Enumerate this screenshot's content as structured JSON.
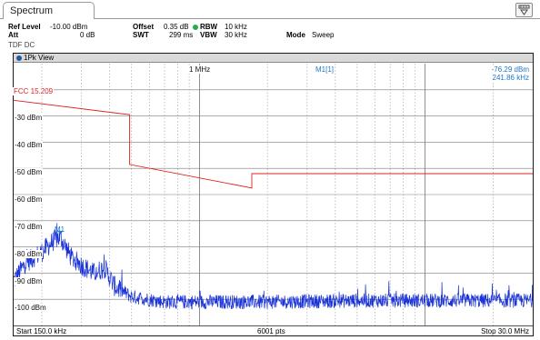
{
  "tab": {
    "label": "Spectrum"
  },
  "settings": {
    "ref_level_label": "Ref Level",
    "ref_level_value": "-10.00 dBm",
    "offset_label": "Offset",
    "offset_value": "0.35 dB",
    "rbw_label": "RBW",
    "rbw_value": "10 kHz",
    "att_label": "Att",
    "att_value": "0 dB",
    "swt_label": "SWT",
    "swt_value": "299 ms",
    "vbw_label": "VBW",
    "vbw_value": "30 kHz",
    "mode_label": "Mode",
    "mode_value": "Sweep",
    "coupling": "TDF DC"
  },
  "diagram": {
    "title": "1Pk View",
    "marker_readout": {
      "label": "M1[1]",
      "level": "-76.29 dBm",
      "frequency": "241.86 kHz"
    },
    "limit_line_label": "FCC 15.209",
    "marker_label": "M1",
    "vertical_marker_label": "1 MHz",
    "y_labels": [
      "-30 dBm",
      "-40 dBm",
      "-50 dBm",
      "-60 dBm",
      "-70 dBm",
      "-80 dBm",
      "-90 dBm",
      "-100 dBm"
    ],
    "start": "Start 150.0 kHz",
    "points": "6001 pts",
    "stop": "Stop 30.0 MHz",
    "colors": {
      "trace": "#1a33d6",
      "limit": "#e02020",
      "marker": "#1f78c8"
    }
  },
  "chart_data": {
    "type": "line",
    "x_scale": "log",
    "x_range_hz": [
      150000,
      30000000
    ],
    "y_range_dbm": [
      -110,
      -10
    ],
    "grid": true,
    "limit_line": {
      "name": "FCC 15.209",
      "points": [
        [
          150000,
          -24
        ],
        [
          490000,
          -29.5
        ],
        [
          490000,
          -48.5
        ],
        [
          1705000,
          -57.5
        ],
        [
          1705000,
          -52
        ],
        [
          30000000,
          -52
        ]
      ]
    },
    "trace_envelope": [
      [
        150000,
        -93
      ],
      [
        170000,
        -86
      ],
      [
        200000,
        -82
      ],
      [
        230000,
        -77
      ],
      [
        241860,
        -76.29
      ],
      [
        270000,
        -84
      ],
      [
        300000,
        -87
      ],
      [
        340000,
        -90
      ],
      [
        380000,
        -88
      ],
      [
        420000,
        -95
      ],
      [
        500000,
        -99
      ],
      [
        700000,
        -101
      ],
      [
        1000000,
        -101
      ],
      [
        2000000,
        -101
      ],
      [
        5000000,
        -100.5
      ],
      [
        10000000,
        -100.5
      ],
      [
        20000000,
        -100.5
      ],
      [
        30000000,
        -100.5
      ]
    ],
    "marker": {
      "name": "M1",
      "frequency_hz": 241860,
      "level_dbm": -76.29
    }
  }
}
